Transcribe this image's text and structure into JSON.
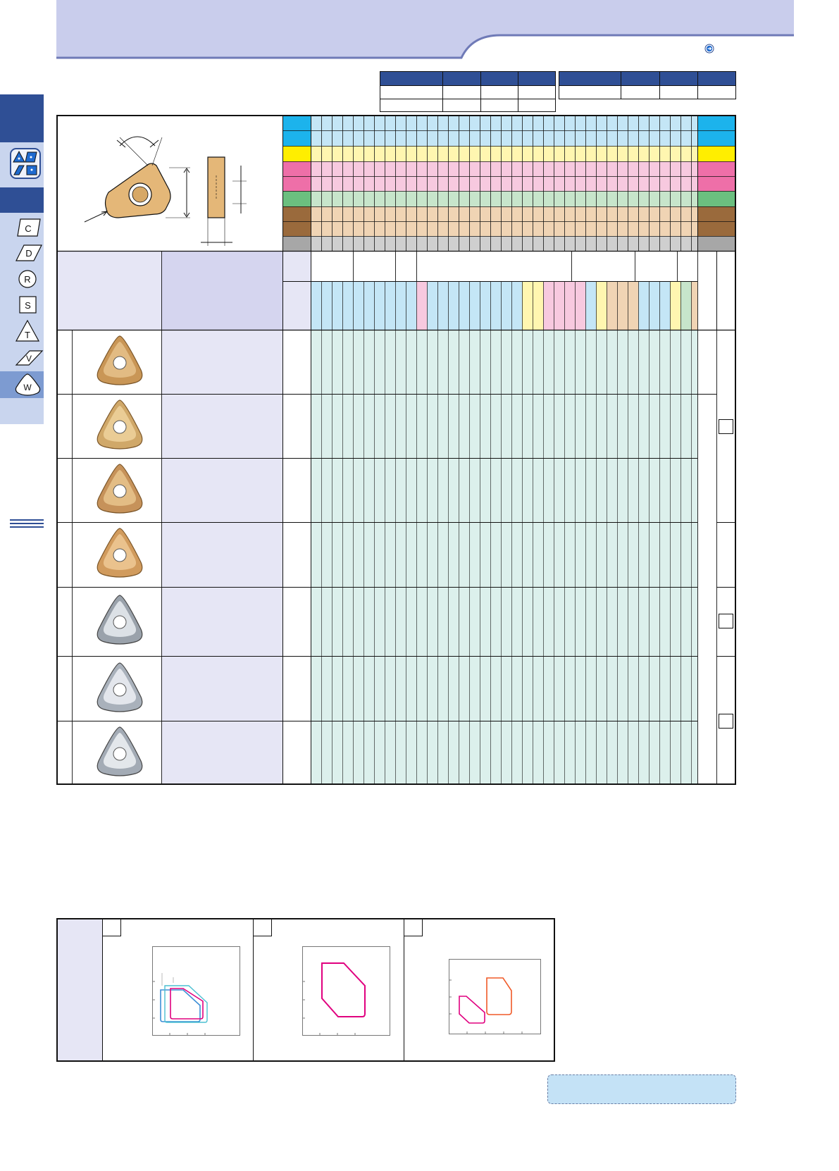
{
  "header": {
    "title": "",
    "page_link_icon": "arrow-right-circle-icon",
    "colors": {
      "band": "#c9cdec",
      "band_line": "#6f7ab7"
    }
  },
  "sidebar": {
    "tabs": [
      {
        "id": "c",
        "label": "C",
        "shape": "rhombus-80"
      },
      {
        "id": "d",
        "label": "D",
        "shape": "rhombus-55"
      },
      {
        "id": "r",
        "label": "R",
        "shape": "round"
      },
      {
        "id": "s",
        "label": "S",
        "shape": "square"
      },
      {
        "id": "t",
        "label": "T",
        "shape": "triangle"
      },
      {
        "id": "v",
        "label": "V",
        "shape": "rhombus-35"
      },
      {
        "id": "w",
        "label": "W",
        "shape": "trigon",
        "active": true
      }
    ],
    "colors": {
      "dark": "#2f4f95",
      "light": "#c9d5ee",
      "active": "#7d9bd1"
    }
  },
  "table": {
    "material_band_colors": [
      "#1cb3ec",
      "#ffee00",
      "#ee6fa8",
      "#6bbf7f",
      "#9a6a3c",
      "#a7a7a7"
    ],
    "cell_colors": {
      "blue": "#c4e6f6",
      "yellow": "#fff6b0",
      "pink": "#f7c9df",
      "green": "#c7e5cb",
      "brown": "#f0d4b4",
      "gray": "#cfcfcf",
      "body": "#dcf0ec",
      "name_panel": "#e6e6f5"
    },
    "rows": [
      {
        "image": "wnmg-insert-gold-chipbreaker"
      },
      {
        "image": "wnmg-insert-gold-wavy"
      },
      {
        "image": "wnmg-insert-gold-dotted"
      },
      {
        "image": "wnmg-insert-gold-flat"
      },
      {
        "image": "wnmg-insert-silver-wavy"
      },
      {
        "image": "wnmg-insert-silver-ground"
      },
      {
        "image": "wnmg-insert-silver-sharp"
      }
    ]
  },
  "charts": [
    {
      "tag": "",
      "curves": [
        "#3c8fd6",
        "#e0007f",
        "#4abfd1"
      ]
    },
    {
      "tag": "",
      "curves": [
        "#e0007f"
      ]
    },
    {
      "tag": "",
      "curves": [
        "#e0007f",
        "#f05a28"
      ]
    }
  ],
  "footer": {
    "note": ""
  }
}
